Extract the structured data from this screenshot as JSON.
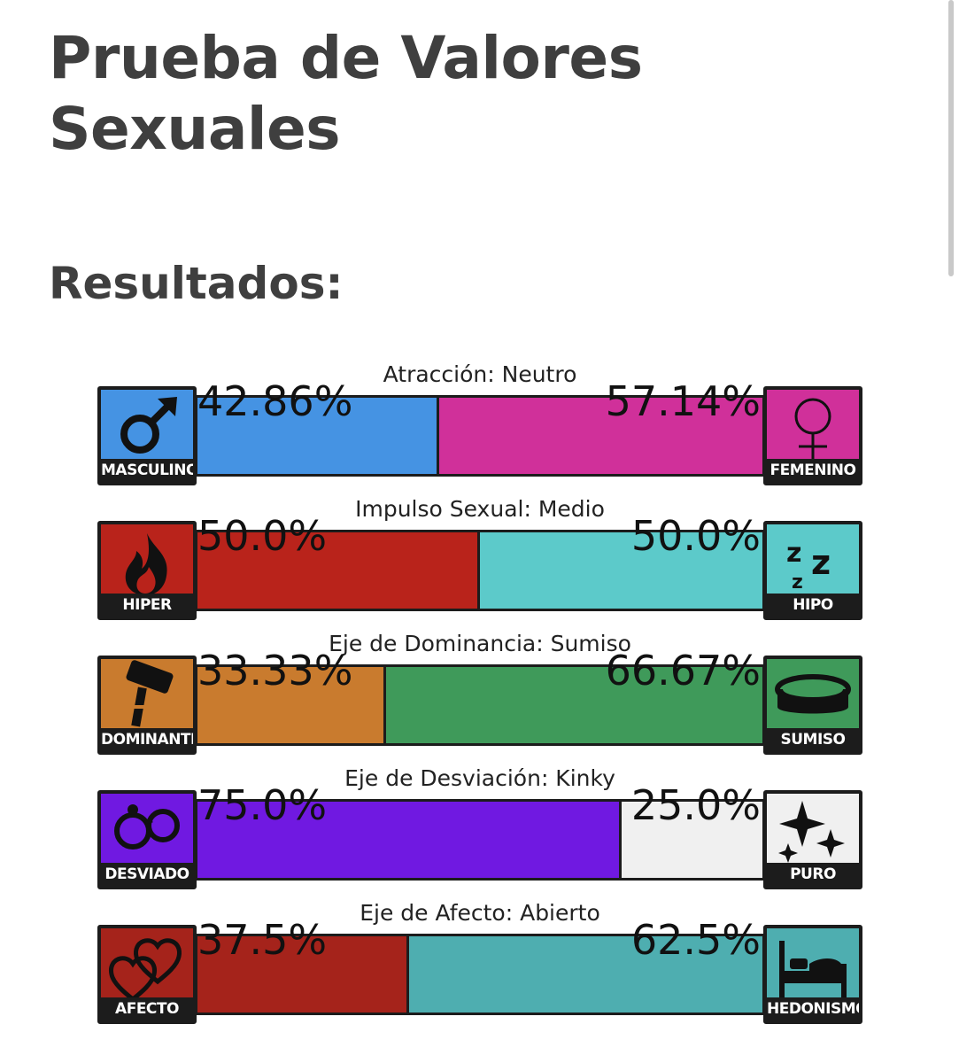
{
  "page": {
    "title": "Prueba de Valores Sexuales",
    "subtitle": "Resultados:"
  },
  "axes": [
    {
      "label": "Atracción: Neutro",
      "left": {
        "name": "MASCULINO",
        "percent_text": "42.86%",
        "value": 42.86,
        "color": "#4593e3",
        "icon": "male-symbol-icon"
      },
      "right": {
        "name": "FEMENINO",
        "percent_text": "57.14%",
        "value": 57.14,
        "color": "#d0309a",
        "icon": "female-symbol-icon"
      }
    },
    {
      "label": "Impulso Sexual: Medio",
      "left": {
        "name": "HIPER",
        "percent_text": "50.0%",
        "value": 50.0,
        "color": "#b9231b",
        "icon": "fire-icon"
      },
      "right": {
        "name": "HIPO",
        "percent_text": "50.0%",
        "value": 50.0,
        "color": "#5ccaca",
        "icon": "sleep-zzz-icon"
      }
    },
    {
      "label": "Eje de Dominancia: Sumiso",
      "left": {
        "name": "DOMINANTE",
        "percent_text": "33.33%",
        "value": 33.33,
        "color": "#c97b2e",
        "icon": "gavel-icon"
      },
      "right": {
        "name": "SUMISO",
        "percent_text": "66.67%",
        "value": 66.67,
        "color": "#3f9a5a",
        "icon": "collar-icon"
      }
    },
    {
      "label": "Eje de Desviación: Kinky",
      "left": {
        "name": "DESVIADO",
        "percent_text": "75.0%",
        "value": 75.0,
        "color": "#7019e1",
        "icon": "handcuffs-icon"
      },
      "right": {
        "name": "PURO",
        "percent_text": "25.0%",
        "value": 25.0,
        "color": "#f0f0f0",
        "icon": "sparkles-icon"
      }
    },
    {
      "label": "Eje de Afecto: Abierto",
      "left": {
        "name": "AFECTO",
        "percent_text": "37.5%",
        "value": 37.5,
        "color": "#a5231b",
        "icon": "hearts-icon"
      },
      "right": {
        "name": "HEDONISMO",
        "percent_text": "62.5%",
        "value": 62.5,
        "color": "#4eaeb0",
        "icon": "bed-icon"
      }
    }
  ]
}
